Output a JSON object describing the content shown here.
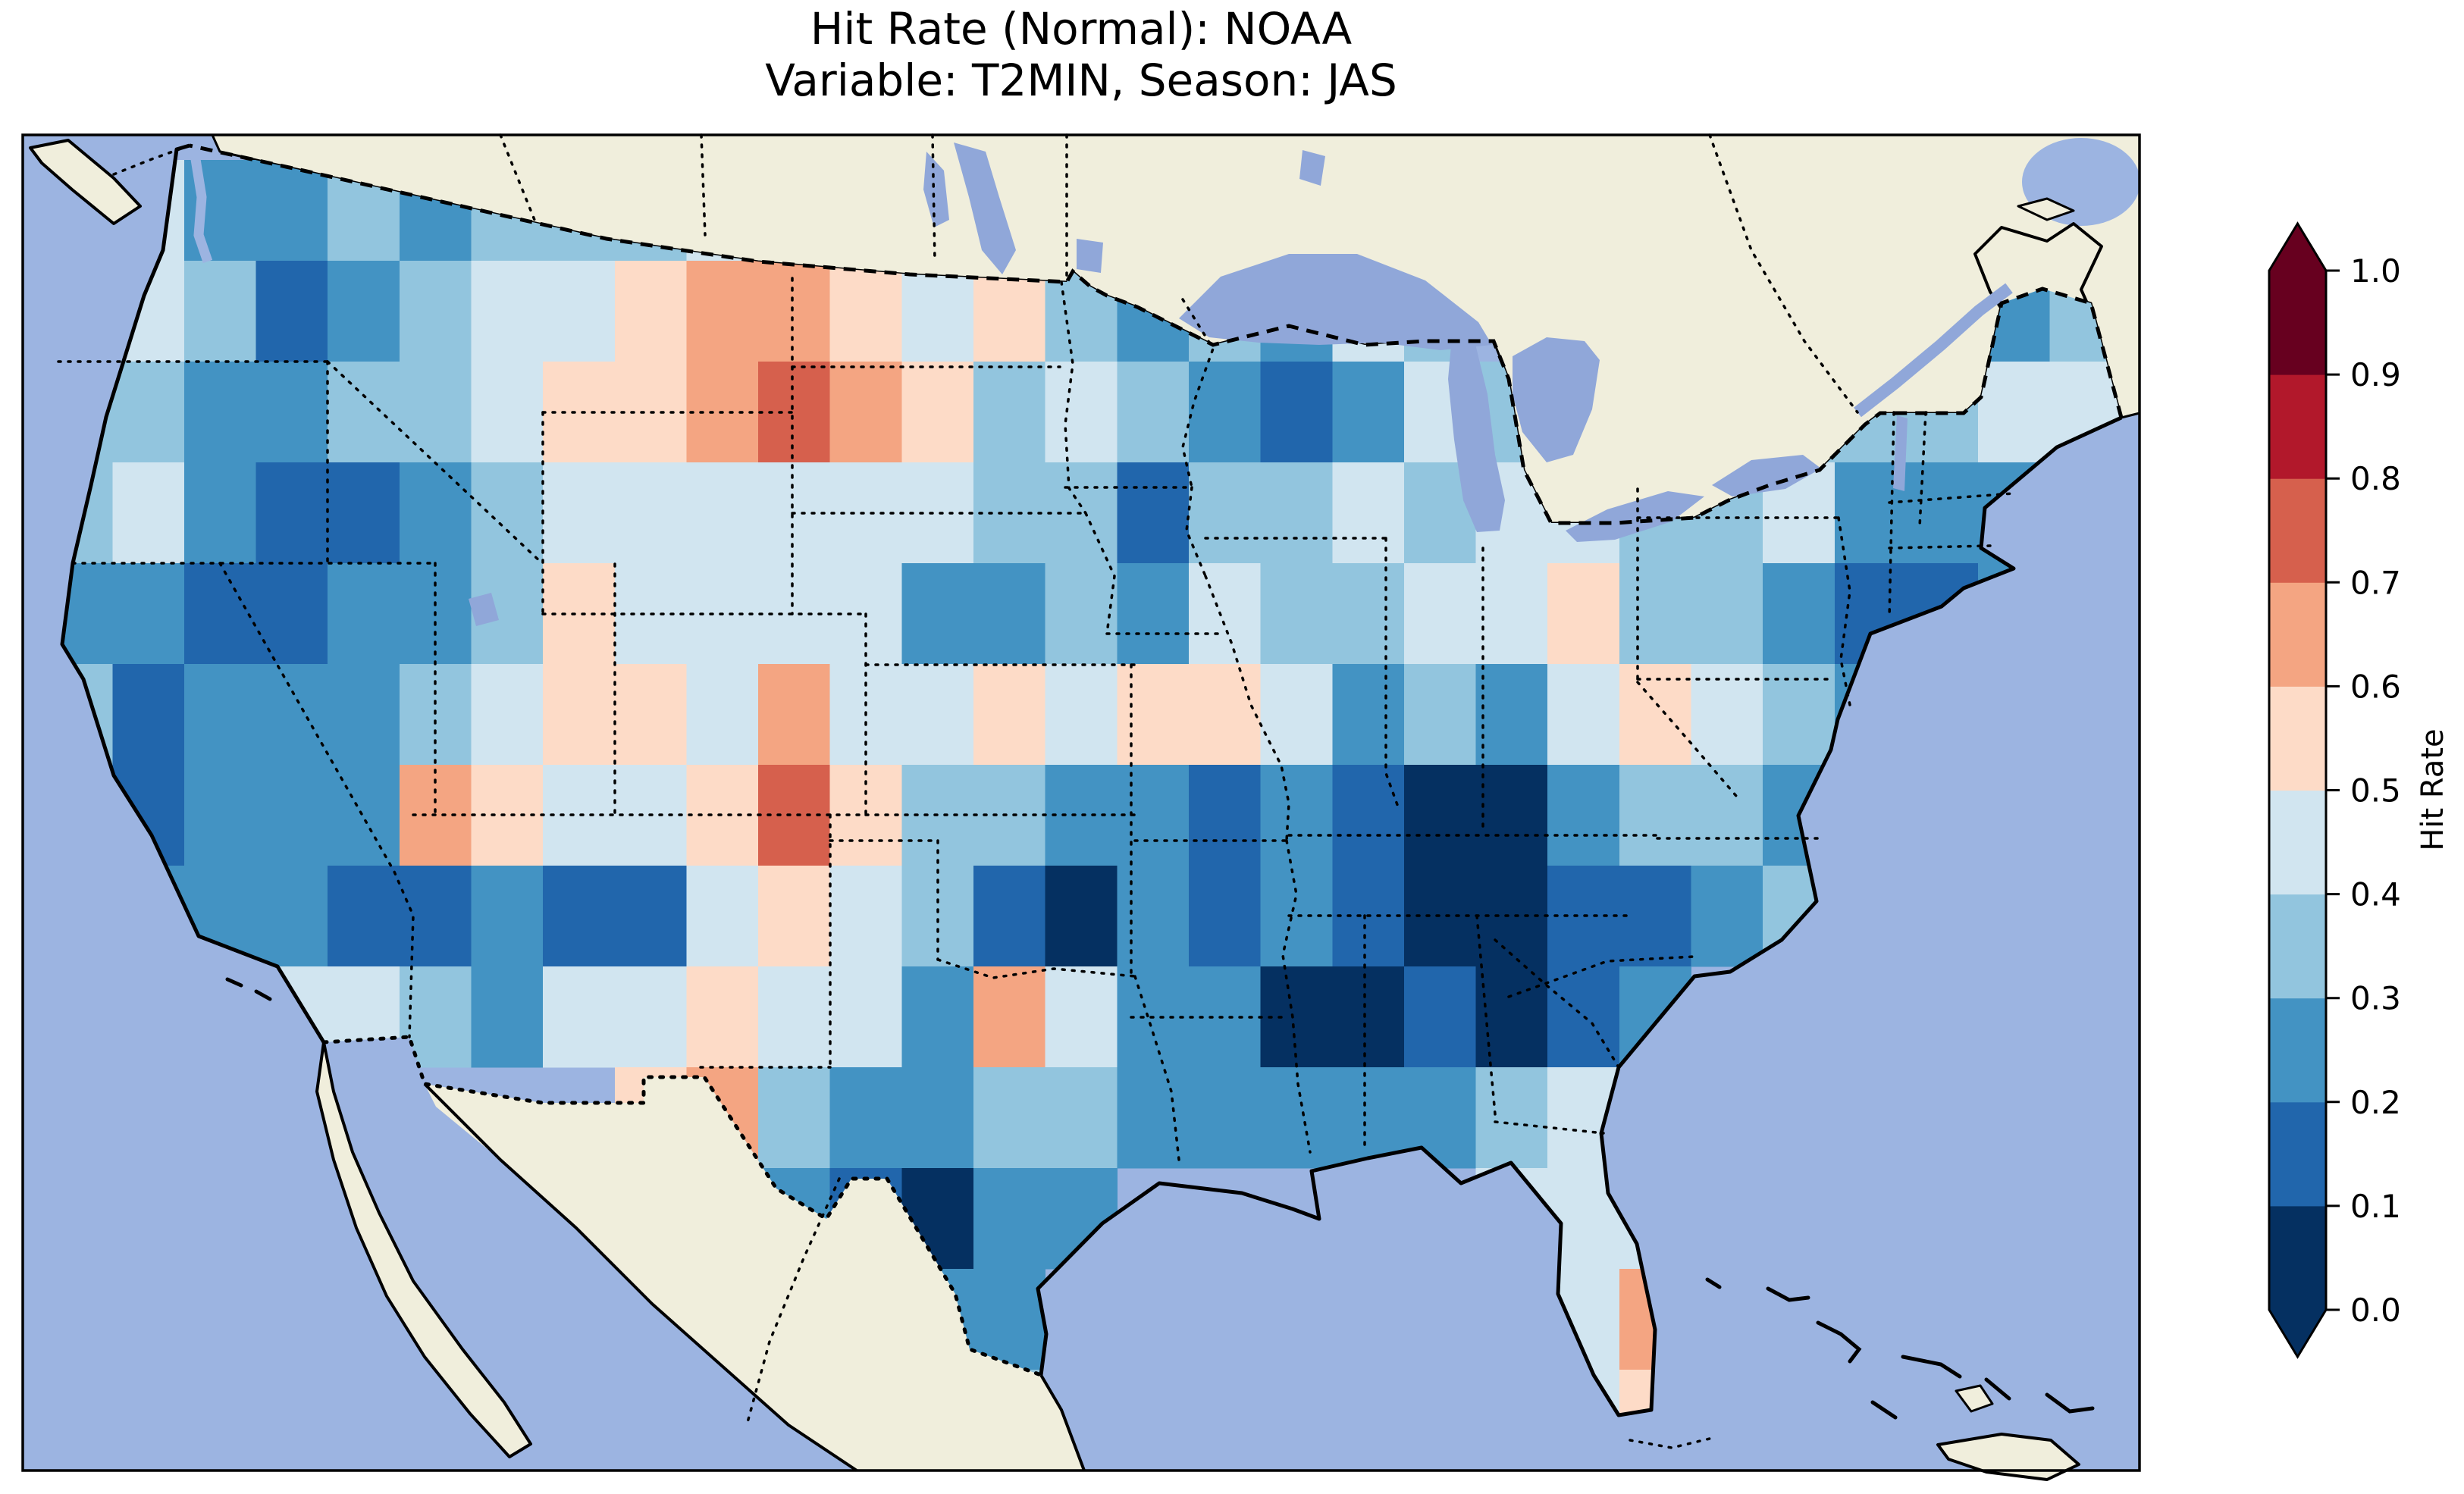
{
  "figure": {
    "title_line1": "Hit Rate (Normal): NOAA",
    "title_line2": "Variable: T2MIN, Season: JAS"
  },
  "map": {
    "ocean_color": "#9cb4e1",
    "land_color": "#f0eedc",
    "lake_color": "#90a7d9",
    "border_color": "#000000",
    "frame_color": "#000000"
  },
  "colorbar": {
    "label": "Hit Rate",
    "ticks": [
      "1.0",
      "0.9",
      "0.8",
      "0.7",
      "0.6",
      "0.5",
      "0.4",
      "0.3",
      "0.2",
      "0.1",
      "0.0"
    ],
    "bin_colors_low_to_high": [
      "#053061",
      "#2166ac",
      "#4393c3",
      "#92c5de",
      "#d1e5f0",
      "#fddbc7",
      "#f4a582",
      "#d6604d",
      "#b2182b",
      "#67001f"
    ],
    "under_arrow_color": "#053061",
    "over_arrow_color": "#67001f",
    "extend": "both"
  },
  "chart_data": {
    "type": "heatmap",
    "title": "Hit Rate (Normal): NOAA",
    "subtitle": "Variable: T2MIN, Season: JAS",
    "variable": "T2MIN",
    "season": "JAS",
    "dataset": "NOAA",
    "colorbar_label": "Hit Rate",
    "value_bins": [
      0.0,
      0.1,
      0.2,
      0.3,
      0.4,
      0.5,
      0.6,
      0.7,
      0.8,
      0.9,
      1.0
    ],
    "extent": {
      "lon": [
        -125.5,
        -66.5
      ],
      "lat": [
        24.0,
        50.5
      ]
    },
    "grid": {
      "note": "Approximate 2-degree aggregation of the plotted hit-rate field; values are bin midpoints read from the map colors; null = outside CONUS data region",
      "lon_west_edge": -125,
      "lon_step_deg": 2,
      "lat_north_edge": 50,
      "lat_step_deg": 2,
      "values": [
        [
          null,
          0.45,
          0.25,
          0.25,
          0.35,
          0.25,
          0.35,
          0.35,
          0.35,
          0.45,
          0.55,
          0.55,
          0.55,
          0.45,
          0.35,
          0.25,
          0.35,
          null,
          null,
          null,
          null,
          null,
          null,
          null,
          null,
          null,
          null,
          null,
          null
        ],
        [
          0.45,
          0.45,
          0.35,
          0.15,
          0.25,
          0.35,
          0.45,
          0.45,
          0.55,
          0.65,
          0.65,
          0.55,
          0.45,
          0.55,
          0.35,
          0.25,
          0.35,
          0.25,
          0.45,
          0.35,
          null,
          null,
          null,
          null,
          null,
          null,
          null,
          0.25,
          0.35
        ],
        [
          0.35,
          0.35,
          0.25,
          0.25,
          0.35,
          0.35,
          0.45,
          0.55,
          0.55,
          0.65,
          0.75,
          0.65,
          0.55,
          0.35,
          0.45,
          0.35,
          0.25,
          0.15,
          0.25,
          0.45,
          0.35,
          null,
          null,
          null,
          0.35,
          0.35,
          0.35,
          0.45,
          0.45
        ],
        [
          0.35,
          0.45,
          0.25,
          0.15,
          0.15,
          0.25,
          0.35,
          0.45,
          0.45,
          0.45,
          0.45,
          0.45,
          0.45,
          0.35,
          0.35,
          0.15,
          0.35,
          0.35,
          0.45,
          0.35,
          0.45,
          0.45,
          0.35,
          0.35,
          0.45,
          0.25,
          0.25,
          0.25,
          null
        ],
        [
          0.25,
          0.25,
          0.15,
          0.15,
          0.25,
          0.25,
          0.35,
          0.55,
          0.45,
          0.45,
          0.45,
          0.45,
          0.25,
          0.25,
          0.35,
          0.25,
          0.45,
          0.35,
          0.35,
          0.45,
          0.45,
          0.55,
          0.35,
          0.35,
          0.25,
          0.15,
          0.15,
          0.25,
          null
        ],
        [
          0.35,
          0.15,
          0.25,
          0.25,
          0.25,
          0.35,
          0.45,
          0.55,
          0.55,
          0.45,
          0.65,
          0.45,
          0.45,
          0.55,
          0.45,
          0.55,
          0.55,
          0.45,
          0.25,
          0.35,
          0.25,
          0.45,
          0.55,
          0.45,
          0.35,
          0.25,
          null,
          null,
          null
        ],
        [
          0.35,
          0.15,
          0.25,
          0.25,
          0.25,
          0.65,
          0.55,
          0.45,
          0.45,
          0.55,
          0.75,
          0.55,
          0.35,
          0.35,
          0.25,
          0.25,
          0.15,
          0.25,
          0.15,
          0.05,
          0.05,
          0.25,
          0.35,
          0.35,
          0.25,
          null,
          null,
          null,
          null
        ],
        [
          null,
          0.25,
          0.25,
          0.25,
          0.15,
          0.15,
          0.25,
          0.15,
          0.15,
          0.45,
          0.55,
          0.45,
          0.35,
          0.15,
          0.05,
          0.25,
          0.15,
          0.25,
          0.15,
          0.05,
          0.05,
          0.15,
          0.15,
          0.25,
          0.35,
          null,
          null,
          null,
          null
        ],
        [
          null,
          0.35,
          0.35,
          0.45,
          0.45,
          0.35,
          0.25,
          0.45,
          0.45,
          0.55,
          0.45,
          0.45,
          0.25,
          0.65,
          0.45,
          0.25,
          0.25,
          0.05,
          0.05,
          0.15,
          0.05,
          0.15,
          0.25,
          null,
          null,
          null,
          null,
          null,
          null
        ],
        [
          null,
          null,
          null,
          null,
          null,
          null,
          null,
          null,
          0.55,
          0.65,
          0.35,
          0.25,
          0.25,
          0.35,
          0.35,
          0.25,
          0.25,
          0.25,
          0.25,
          0.25,
          0.35,
          0.45,
          0.35,
          null,
          null,
          null,
          null,
          null,
          null
        ],
        [
          null,
          null,
          null,
          null,
          null,
          null,
          null,
          null,
          null,
          null,
          0.25,
          0.15,
          0.05,
          0.25,
          0.25,
          null,
          null,
          null,
          null,
          null,
          0.45,
          0.45,
          0.45,
          null,
          null,
          null,
          null,
          null,
          null
        ],
        [
          null,
          null,
          null,
          null,
          null,
          null,
          null,
          null,
          null,
          null,
          null,
          null,
          0.25,
          0.25,
          null,
          null,
          null,
          null,
          null,
          null,
          null,
          0.45,
          0.65,
          null,
          null,
          null,
          null,
          null,
          null
        ],
        [
          null,
          null,
          null,
          null,
          null,
          null,
          null,
          null,
          null,
          null,
          null,
          null,
          null,
          0.35,
          null,
          null,
          null,
          null,
          null,
          null,
          null,
          0.45,
          0.55,
          null,
          null,
          null,
          null,
          null,
          null
        ]
      ]
    }
  }
}
